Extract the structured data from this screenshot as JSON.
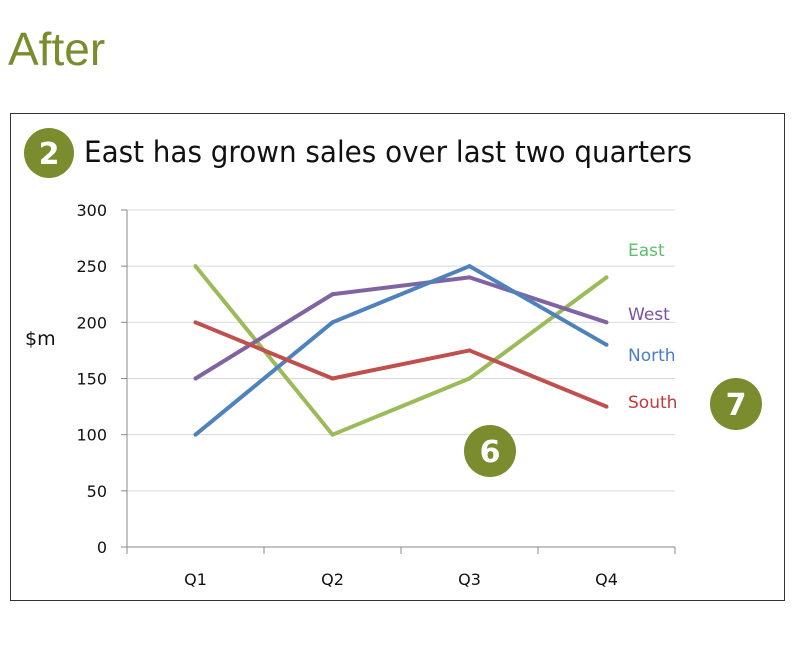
{
  "heading": "After",
  "badges": [
    "2",
    "6",
    "7"
  ],
  "chart_data": {
    "type": "line",
    "title": "East has grown sales over last two quarters",
    "ylabel": "$m",
    "xlabel": "",
    "categories": [
      "Q1",
      "Q2",
      "Q3",
      "Q4"
    ],
    "ylim": [
      0,
      300
    ],
    "yticks": [
      0,
      50,
      100,
      150,
      200,
      250,
      300
    ],
    "grid": true,
    "legend": "inline labels at line ends (right)",
    "series": [
      {
        "name": "East",
        "values": [
          250,
          100,
          150,
          240
        ],
        "color": "#9bbb59",
        "label_color": "#5cbf6e"
      },
      {
        "name": "West",
        "values": [
          150,
          225,
          240,
          200
        ],
        "color": "#8064a2",
        "label_color": "#7a4fa8"
      },
      {
        "name": "North",
        "values": [
          100,
          200,
          250,
          180
        ],
        "color": "#4f81bd",
        "label_color": "#4a7ec4"
      },
      {
        "name": "South",
        "values": [
          200,
          150,
          175,
          125
        ],
        "color": "#c0504d",
        "label_color": "#c0393b"
      }
    ]
  },
  "colors": {
    "badge": "#7a8c2e",
    "heading": "#7a8c2e"
  }
}
